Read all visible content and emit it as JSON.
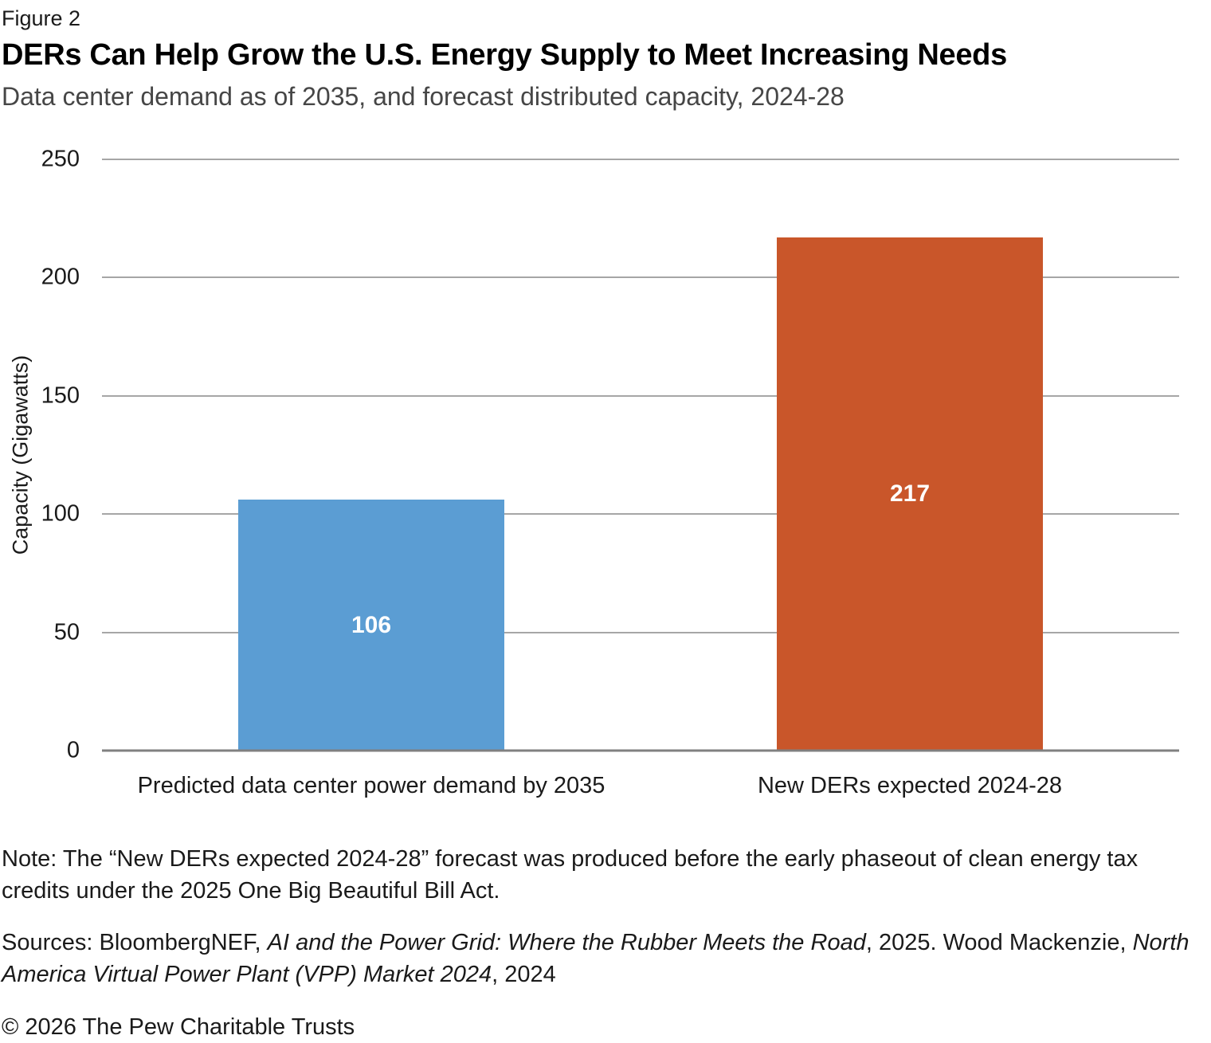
{
  "header": {
    "figure_label": "Figure 2",
    "title": "DERs Can Help Grow the U.S. Energy Supply to Meet Increasing Needs",
    "subtitle": "Data center demand as of 2035, and forecast distributed capacity, 2024-28"
  },
  "chart_data": {
    "type": "bar",
    "categories": [
      "Predicted data center power demand by 2035",
      "New DERs expected 2024-28"
    ],
    "values": [
      106,
      217
    ],
    "bar_colors": [
      "#5b9dd3",
      "#c9562a"
    ],
    "value_label_color": "#ffffff",
    "title": "DERs Can Help Grow the U.S. Energy Supply to Meet Increasing Needs",
    "xlabel": "",
    "ylabel": "Capacity (Gigawatts)",
    "ylim": [
      0,
      250
    ],
    "yticks": [
      250,
      200,
      150,
      100,
      50,
      0
    ],
    "grid": "horizontal",
    "gridline_color": "#a6a6a6",
    "axis_line_color": "#808080",
    "legend": "none",
    "bar_width_pct": 24.7
  },
  "footnotes": {
    "note": "Note: The “New DERs expected 2024-28” forecast was produced before the early phaseout of clean energy tax credits under the 2025 One Big Beautiful Bill Act.",
    "sources": {
      "prefix": "Sources: BloombergNEF, ",
      "title1": "AI and the Power Grid: Where the Rubber Meets the Road",
      "middle": ", 2025. Wood Mackenzie, ",
      "title2": "North America Virtual Power Plant (VPP) Market 2024",
      "suffix": ", 2024"
    },
    "copyright": "© 2026 The Pew Charitable Trusts"
  }
}
